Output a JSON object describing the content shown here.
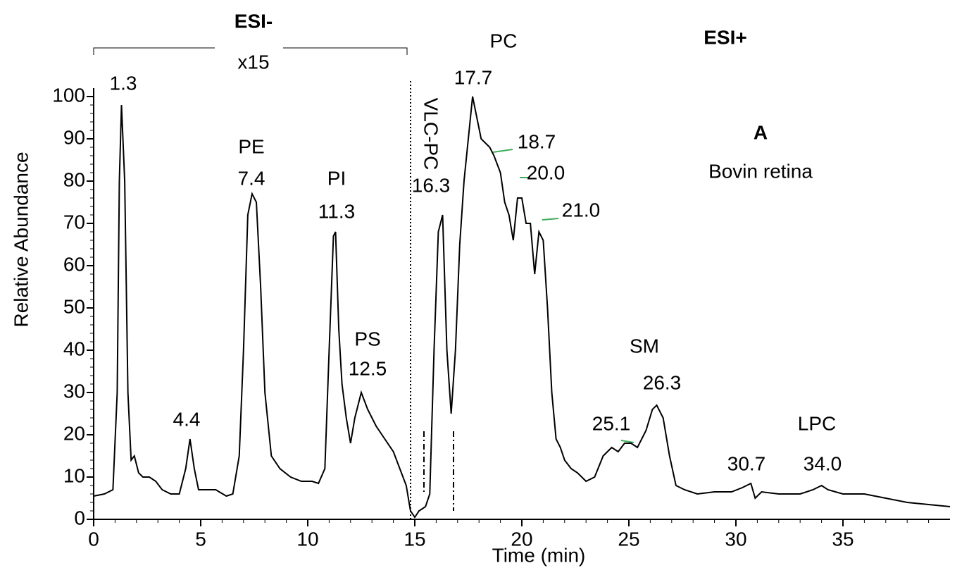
{
  "chart_data": {
    "type": "line",
    "xlabel": "Time (min)",
    "ylabel": "Relative Abundance",
    "xlim": [
      0,
      40
    ],
    "ylim": [
      0,
      100
    ],
    "xticks": [
      0,
      5,
      10,
      15,
      20,
      25,
      30,
      35
    ],
    "yticks": [
      0,
      10,
      20,
      30,
      40,
      50,
      60,
      70,
      80,
      90,
      100
    ],
    "color": "#000000",
    "x": [
      0,
      0.5,
      0.9,
      1.1,
      1.2,
      1.3,
      1.45,
      1.6,
      1.75,
      1.9,
      2.1,
      2.3,
      2.6,
      2.9,
      3.2,
      3.6,
      4.0,
      4.3,
      4.5,
      4.7,
      4.9,
      5.3,
      5.7,
      6.2,
      6.5,
      6.8,
      7.0,
      7.2,
      7.4,
      7.6,
      7.8,
      8.0,
      8.3,
      8.7,
      9.2,
      9.7,
      10.2,
      10.5,
      10.8,
      11.0,
      11.2,
      11.3,
      11.45,
      11.6,
      11.8,
      12.0,
      12.2,
      12.5,
      12.8,
      13.2,
      13.6,
      14.0,
      14.3,
      14.6,
      14.8,
      15.0,
      15.2,
      15.5,
      15.7,
      15.9,
      16.1,
      16.3,
      16.5,
      16.7,
      16.9,
      17.1,
      17.3,
      17.5,
      17.7,
      17.9,
      18.1,
      18.5,
      18.7,
      19.0,
      19.2,
      19.4,
      19.6,
      19.8,
      20.0,
      20.2,
      20.4,
      20.6,
      20.8,
      21.0,
      21.2,
      21.4,
      21.6,
      21.8,
      22.0,
      22.3,
      22.6,
      23.0,
      23.4,
      23.8,
      24.2,
      24.5,
      24.8,
      25.1,
      25.4,
      25.8,
      26.1,
      26.3,
      26.6,
      26.9,
      27.2,
      27.6,
      28.2,
      29.0,
      29.8,
      30.3,
      30.7,
      30.9,
      31.2,
      32,
      33,
      33.6,
      34.0,
      34.3,
      35,
      36,
      37,
      38,
      39,
      40
    ],
    "values": [
      5.5,
      6,
      7,
      30,
      80,
      98,
      80,
      30,
      14,
      15,
      11,
      10,
      10,
      9,
      7,
      6,
      6,
      12,
      19,
      12,
      7,
      7,
      7,
      5.5,
      6,
      15,
      40,
      72,
      77,
      75,
      55,
      30,
      15,
      12,
      10,
      9,
      9,
      8.5,
      12,
      40,
      67,
      68,
      45,
      32,
      24,
      18,
      24,
      30,
      26,
      22,
      19,
      16,
      12,
      8,
      2,
      0.5,
      2,
      3,
      6,
      40,
      68,
      72,
      40,
      25,
      40,
      65,
      80,
      90,
      100,
      95,
      90,
      88,
      86,
      82,
      75,
      72,
      66,
      76,
      76,
      70,
      70,
      58,
      68,
      66,
      50,
      30,
      19,
      17,
      14,
      12,
      11,
      9,
      10,
      15,
      17,
      16,
      18,
      18,
      17,
      21,
      26,
      27,
      24,
      15,
      8,
      7,
      6,
      6.5,
      6.5,
      7.5,
      8.5,
      5,
      6.5,
      6,
      6,
      7,
      8,
      7,
      6,
      6,
      5,
      4,
      3.5,
      3
    ],
    "annotations": [
      "ESI-",
      "x15",
      "ESI+",
      "PC",
      "1.3",
      "17.7",
      "A",
      "Bovin retina",
      "PE",
      "7.4",
      "PI",
      "11.3",
      "VLC-PC",
      "16.3",
      "18.7",
      "20.0",
      "21.0",
      "PS",
      "12.5",
      "SM",
      "26.3",
      "4.4",
      "25.1",
      "LPC",
      "30.7",
      "34.0"
    ]
  }
}
